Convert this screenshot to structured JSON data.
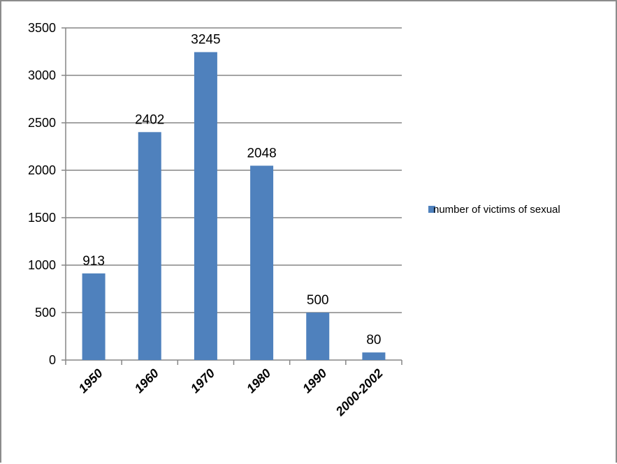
{
  "chart_data": {
    "type": "bar",
    "categories": [
      "1950",
      "1960",
      "1970",
      "1980",
      "1990",
      "2000-2002"
    ],
    "series": [
      {
        "name": "number of victims of sexual",
        "values": [
          913,
          2402,
          3245,
          2048,
          500,
          80
        ],
        "color": "#4f81bd"
      }
    ],
    "ylim": [
      0,
      3500
    ],
    "yticks": [
      0,
      500,
      1000,
      1500,
      2000,
      2500,
      3000,
      3500
    ],
    "data_labels": [
      "913",
      "2402",
      "3245",
      "2048",
      "500",
      "80"
    ],
    "grid": true,
    "legend_position": "right",
    "title": "",
    "xlabel": "",
    "ylabel": ""
  }
}
